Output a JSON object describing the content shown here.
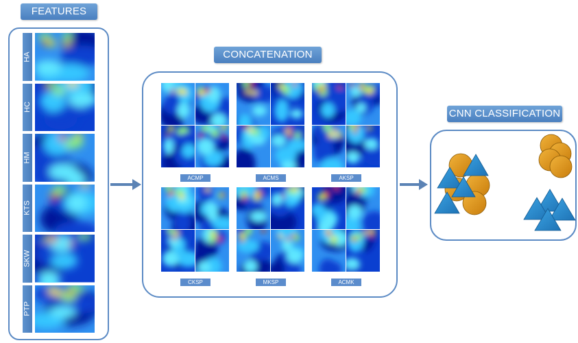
{
  "titles": {
    "features": "FEATURES",
    "concatenation": "CONCATENATION",
    "classification": "CNN CLASSIFICATION"
  },
  "features": [
    "HA",
    "HC",
    "HM",
    "KTS",
    "SKW",
    "PTP"
  ],
  "tiles": [
    "ACMP",
    "ACMS",
    "AKSP",
    "CKSP",
    "MKSP",
    "ACMK"
  ],
  "colors": {
    "panel_border": "#5b8ac4",
    "label_fill": "#5b8ccc",
    "arrow": "#5b83b5",
    "circle": "#e19a1a",
    "triangle": "#2a8ccf"
  }
}
